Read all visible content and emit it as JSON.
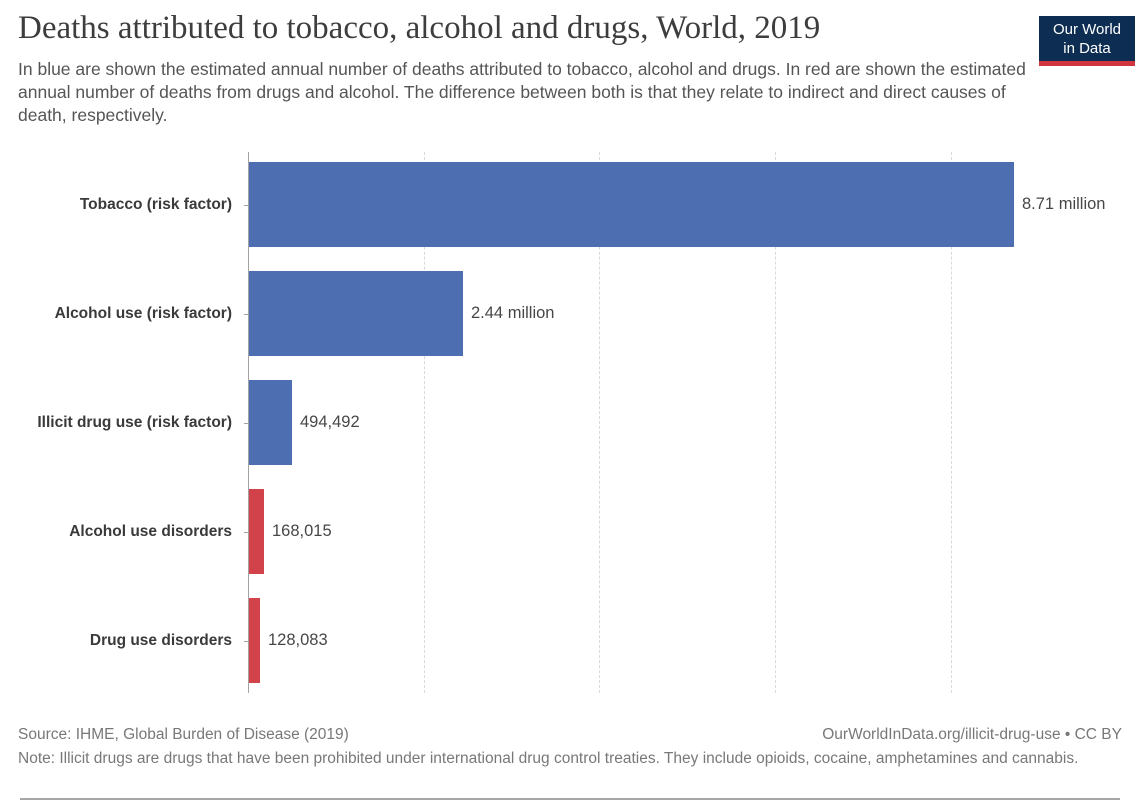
{
  "header": {
    "title": "Deaths attributed to tobacco, alcohol and drugs, World, 2019",
    "subtitle": "In blue are shown the estimated annual number of deaths attributed to tobacco, alcohol and drugs. In red are shown the estimated annual number of deaths from drugs and alcohol. The difference between both is that they relate to indirect and direct causes of death, respectively.",
    "logo": {
      "line1": "Our World",
      "line2": "in Data"
    }
  },
  "chart_data": {
    "type": "bar",
    "orientation": "horizontal",
    "title": "Deaths attributed to tobacco, alcohol and drugs, World, 2019",
    "xlabel": "",
    "ylabel": "",
    "xlim": [
      0,
      10000000
    ],
    "gridlines": [
      2000000,
      4000000,
      6000000,
      8000000
    ],
    "grid": "vertical-dashed",
    "legend": "none",
    "categories": [
      "Tobacco (risk factor)",
      "Alcohol use (risk factor)",
      "Illicit drug use (risk factor)",
      "Alcohol use disorders",
      "Drug use disorders"
    ],
    "values": [
      8710000,
      2440000,
      494492,
      168015,
      128083
    ],
    "value_labels": [
      "8.71 million",
      "2.44 million",
      "494,492",
      "168,015",
      "128,083"
    ],
    "bar_colors": [
      "#4d6eb1",
      "#4d6eb1",
      "#4d6eb1",
      "#d2424b",
      "#d2424b"
    ]
  },
  "footer": {
    "source": "Source: IHME, Global Burden of Disease (2019)",
    "attribution": "OurWorldInData.org/illicit-drug-use • CC BY",
    "note": "Note: Illicit drugs are drugs that have been prohibited under international drug control treaties. They include opioids, cocaine, amphetamines and cannabis."
  },
  "colors": {
    "blue_series": "#4d6eb1",
    "red_series": "#d2424b",
    "logo_navy": "#0d2e52",
    "logo_red": "#d1353f",
    "axis": "#a3a3a3",
    "gridline": "#d9d9d9",
    "title_text": "#3d3d3d",
    "footer_text": "#787878"
  }
}
